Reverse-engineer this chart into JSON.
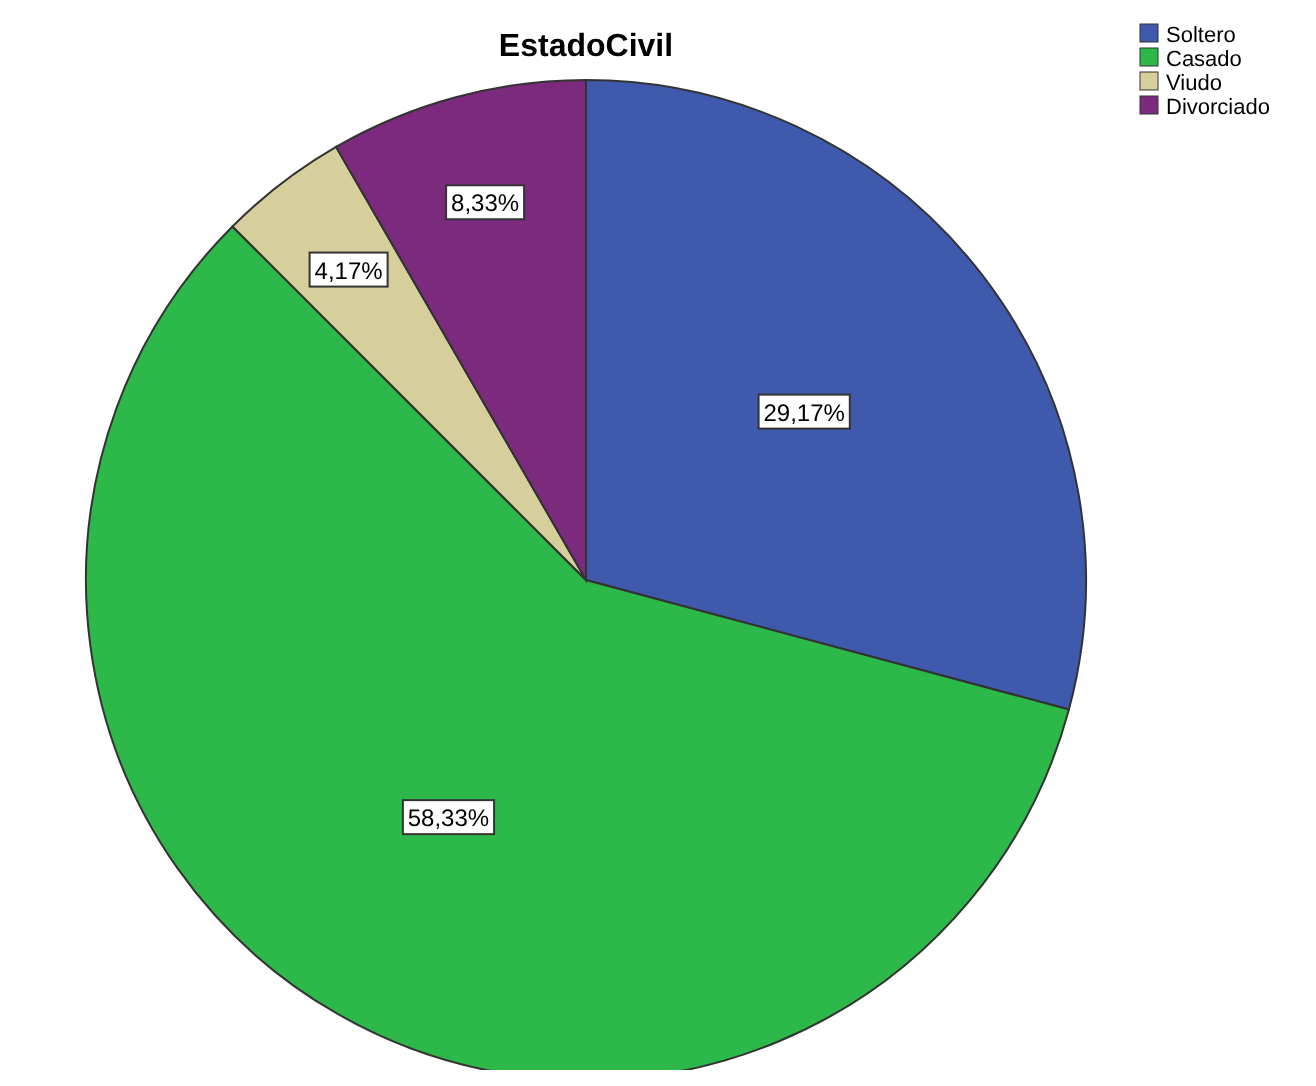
{
  "chart_data": {
    "type": "pie",
    "title": "EstadoCivil",
    "categories": [
      "Soltero",
      "Casado",
      "Viudo",
      "Divorciado"
    ],
    "values": [
      29.17,
      58.33,
      4.17,
      8.33
    ],
    "value_labels": [
      "29,17%",
      "58,33%",
      "4,17%",
      "8,33%"
    ],
    "colors": [
      "#3f5aad",
      "#2db84a",
      "#d6cf9c",
      "#7b2a7e"
    ],
    "legend": "top right"
  }
}
